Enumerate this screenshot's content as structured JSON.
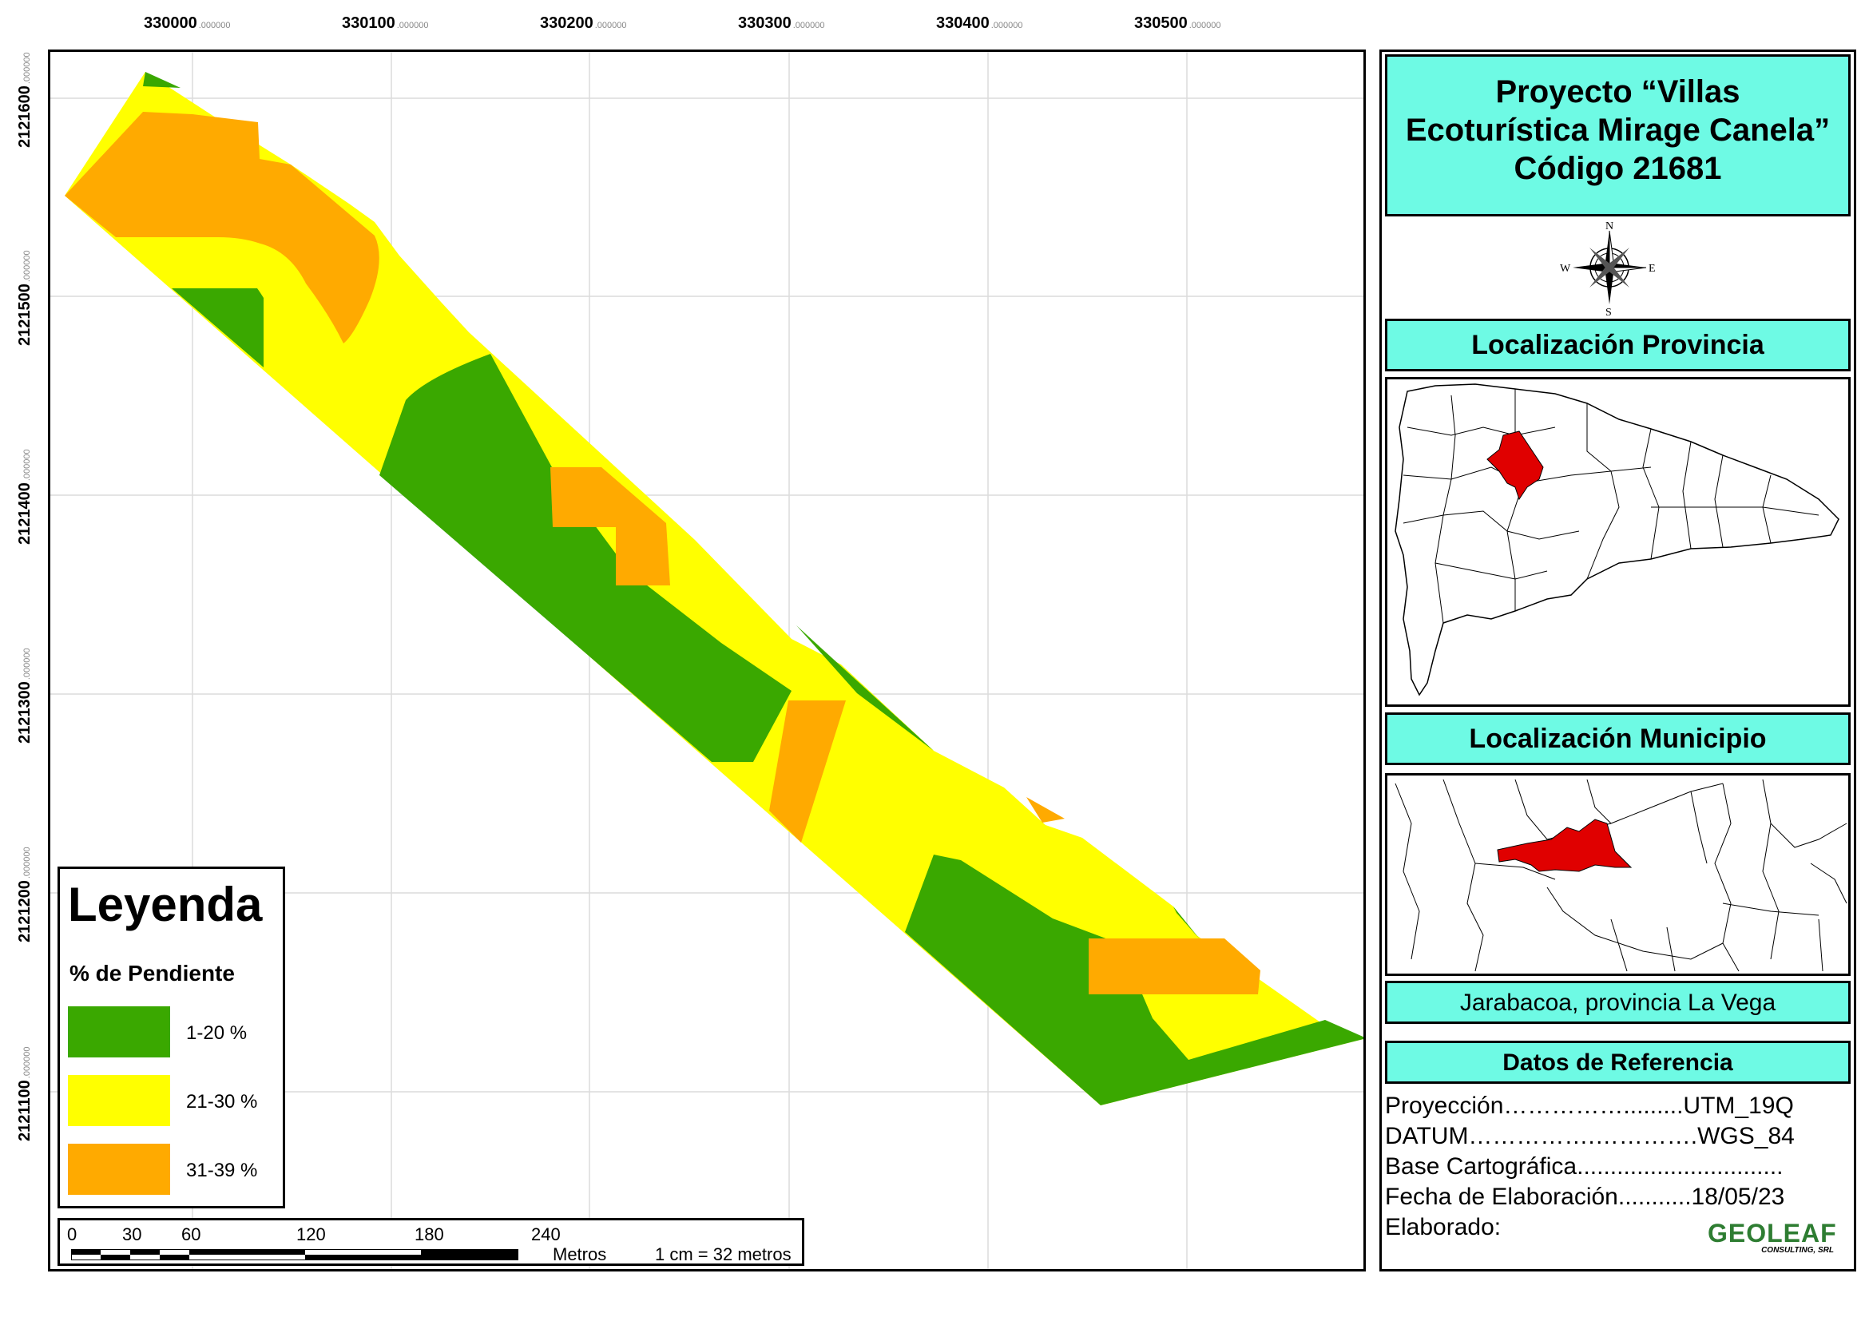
{
  "map": {
    "x_ticks": [
      "330000",
      "330100",
      "330200",
      "330300",
      "330400",
      "330500"
    ],
    "y_ticks": [
      "2121600",
      "2121500",
      "2121400",
      "2121300",
      "2121200",
      "2121100"
    ],
    "tick_decimals": ".000000"
  },
  "legend": {
    "title": "Leyenda",
    "subtitle": "% de Pendiente",
    "items": [
      {
        "label": "1-20 %",
        "color": "#3aa800"
      },
      {
        "label": "21-30 %",
        "color": "#ffff00"
      },
      {
        "label": "31-39 %",
        "color": "#ffaa00"
      }
    ]
  },
  "scale": {
    "ticks": [
      "0",
      "30",
      "60",
      "120",
      "180",
      "240"
    ],
    "unit": "Metros",
    "ratio": "1 cm = 32 metros"
  },
  "title": {
    "line1": "Proyecto “Villas",
    "line2": "Ecoturística Mirage Canela”",
    "line3": "Código 21681"
  },
  "compass": {
    "n": "N",
    "s": "S",
    "e": "E",
    "w": "W"
  },
  "provincia_header": "Localización Provincia",
  "municipio_header": "Localización Municipio",
  "location_label": "Jarabacoa, provincia La Vega",
  "reference": {
    "header": "Datos de Referencia",
    "lines": [
      "Proyección…………….........UTM_19Q",
      "DATUM…………….………….WGS_84",
      "Base   Cartográfica...............................",
      "Fecha  de  Elaboración...........18/05/23",
      "Elaborado:"
    ]
  },
  "logo": {
    "name": "GEOLEAF",
    "sub": "CONSULTING, SRL"
  },
  "colors": {
    "accent": "#6efae4",
    "highlight": "#e00000"
  }
}
